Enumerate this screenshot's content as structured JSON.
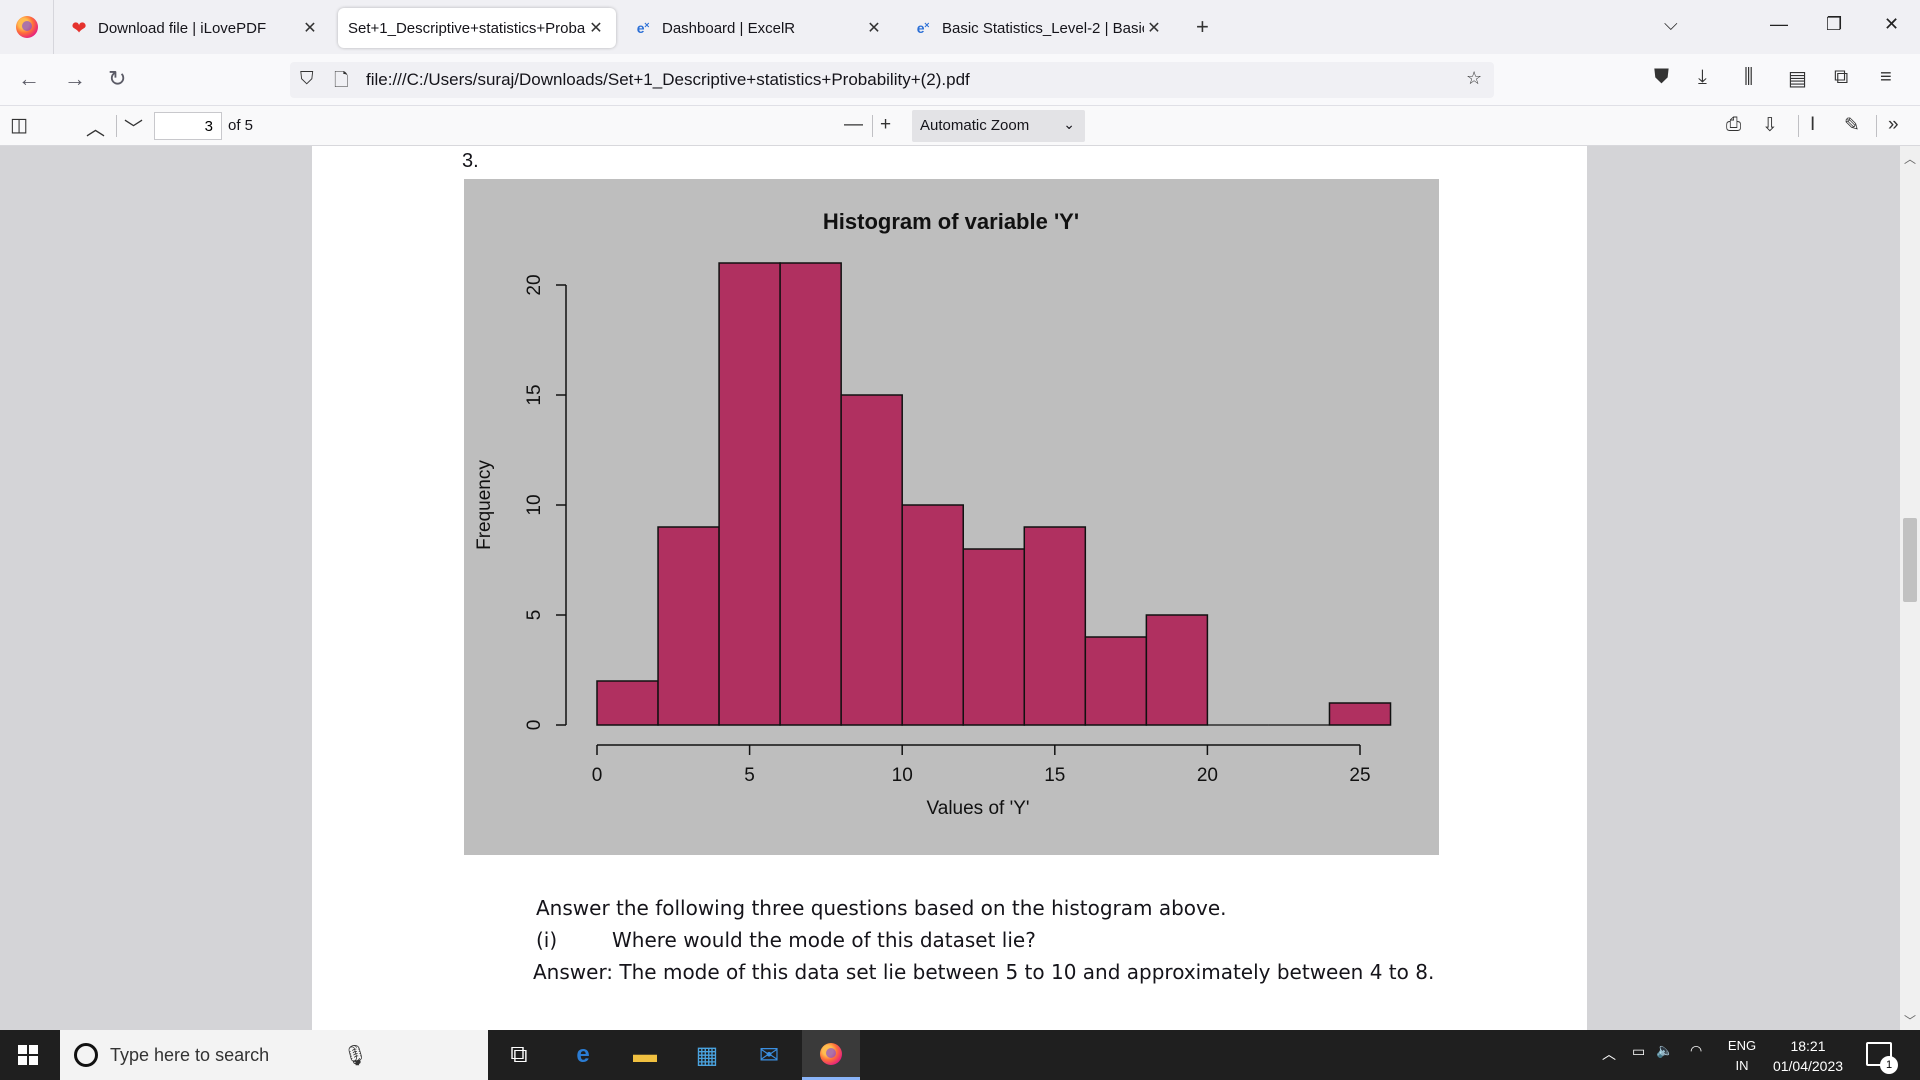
{
  "tabs": [
    {
      "title": "Download file | iLovePDF",
      "icon": "heart-icon",
      "active": false
    },
    {
      "title": "Set+1_Descriptive+statistics+Proba",
      "icon": "",
      "active": true
    },
    {
      "title": "Dashboard | ExcelR",
      "icon": "excelr-icon",
      "active": false
    },
    {
      "title": "Basic Statistics_Level-2 | Basic S",
      "icon": "excelr-icon",
      "active": false
    }
  ],
  "url": "file:///C:/Users/suraj/Downloads/Set+1_Descriptive+statistics+Probability+(2).pdf",
  "pdf_toolbar": {
    "page_current": "3",
    "page_total": "of 5",
    "zoom": "Automatic Zoom"
  },
  "document": {
    "question_number": "3.",
    "intro": "Answer the following three questions based on the histogram above.",
    "q1_num": "(i)",
    "q1_text": "Where would the mode of this dataset lie?",
    "answer1": "Answer: The mode of this data set lie between 5 to 10 and approximately between 4 to 8."
  },
  "chart_data": {
    "type": "bar",
    "title": "Histogram of variable 'Y'",
    "xlabel": "Values of 'Y'",
    "ylabel": "Frequency",
    "bins": [
      [
        0,
        2
      ],
      [
        2,
        4
      ],
      [
        4,
        6
      ],
      [
        6,
        8
      ],
      [
        8,
        10
      ],
      [
        10,
        12
      ],
      [
        12,
        14
      ],
      [
        14,
        16
      ],
      [
        16,
        18
      ],
      [
        18,
        20
      ],
      [
        20,
        22
      ],
      [
        22,
        24
      ],
      [
        24,
        26
      ]
    ],
    "values": [
      2,
      9,
      21,
      21,
      15,
      10,
      8,
      9,
      4,
      5,
      0,
      0,
      1
    ],
    "xticks": [
      0,
      5,
      10,
      15,
      20,
      25
    ],
    "yticks": [
      0,
      5,
      10,
      15,
      20
    ],
    "xlim": [
      0,
      25
    ],
    "ylim": [
      0,
      20
    ],
    "bar_color": "#b03060",
    "background": "#bebebe"
  },
  "taskbar": {
    "search_placeholder": "Type here to search",
    "lang_top": "ENG",
    "lang_bottom": "IN",
    "time": "18:21",
    "date": "01/04/2023",
    "notification_count": "1"
  }
}
